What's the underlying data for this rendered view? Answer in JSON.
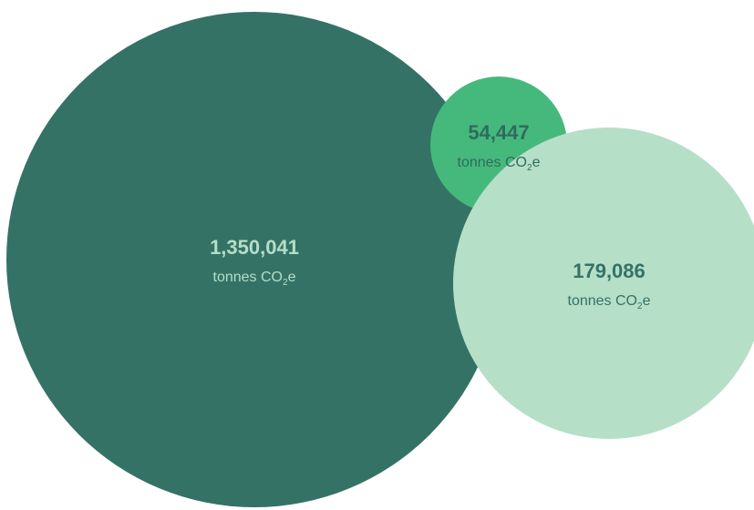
{
  "chart_data": {
    "type": "bubble",
    "unit": "tonnes CO₂e",
    "series": [
      {
        "value": 1350041,
        "display_value": "1,350,041",
        "unit_prefix": "tonnes CO",
        "unit_subscript": "2",
        "unit_suffix": "e",
        "color": "#347266",
        "text_color": "#b3dec7"
      },
      {
        "value": 54447,
        "display_value": "54,447",
        "unit_prefix": "tonnes CO",
        "unit_subscript": "2",
        "unit_suffix": "e",
        "color": "#45b97c",
        "text_color": "#2f6b5d"
      },
      {
        "value": 179086,
        "display_value": "179,086",
        "unit_prefix": "tonnes CO",
        "unit_subscript": "2",
        "unit_suffix": "e",
        "color": "#b6dfc8",
        "text_color": "#347266"
      }
    ]
  }
}
